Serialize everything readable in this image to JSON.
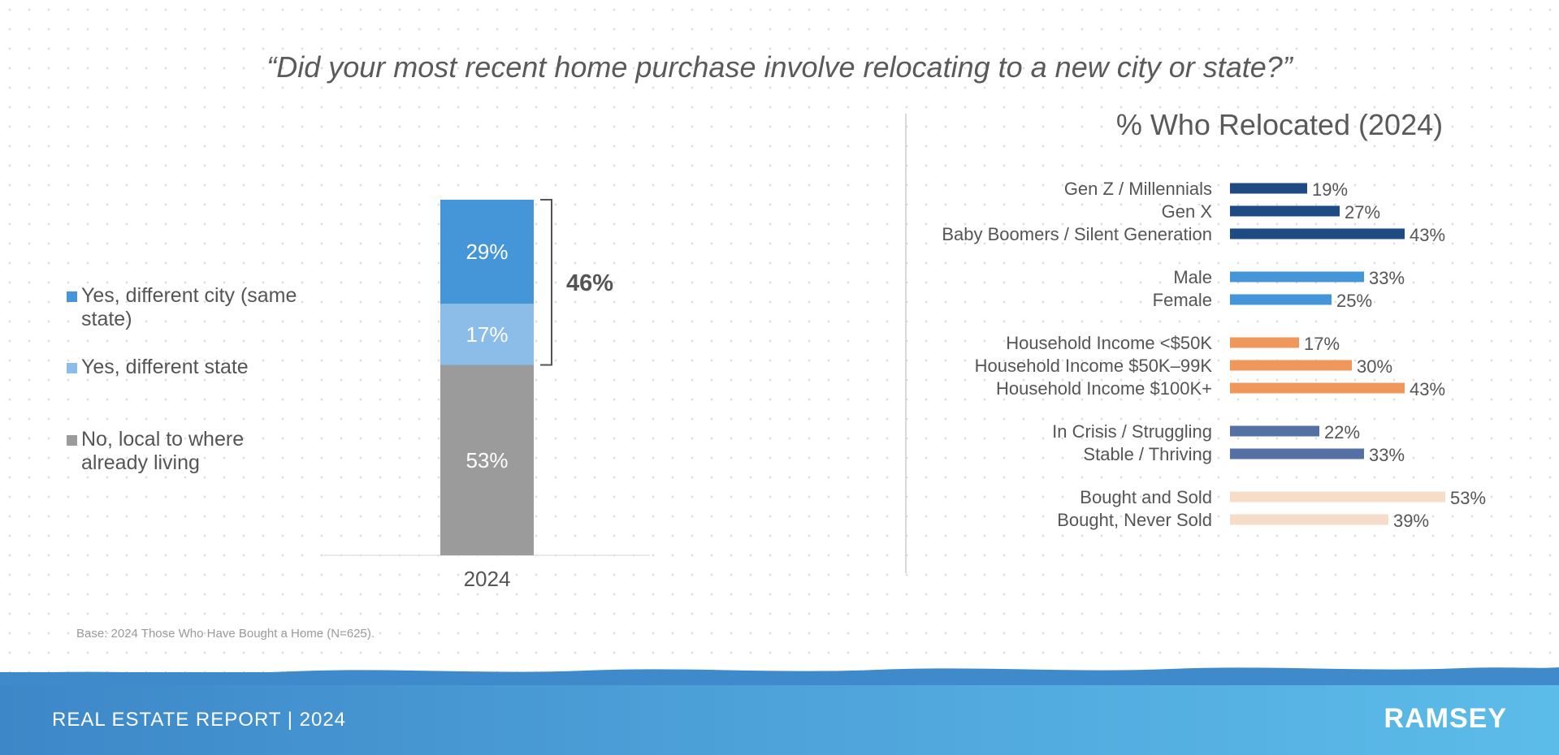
{
  "question": "“Did your most recent home purchase involve relocating to a new city or state?”",
  "base_note": "Base: 2024 Those Who Have Bought a Home (N=625).",
  "footer": {
    "report": "REAL ESTATE REPORT | 2024",
    "brand": "RAMSEY"
  },
  "colors": {
    "same_state": "#4596d8",
    "diff_state": "#8bbde8",
    "local": "#9b9b9b",
    "generation": "#1e4b84",
    "gender": "#4596d8",
    "income": "#f0985c",
    "financial": "#5470a4",
    "selling": "#f7dcc8",
    "footer_start": "#3d87c8",
    "footer_end": "#5cbce9"
  },
  "chart_data": [
    {
      "type": "bar",
      "stacked": true,
      "categories": [
        "2024"
      ],
      "series": [
        {
          "name": "No, local to where already living",
          "values": [
            53
          ],
          "color": "#9b9b9b"
        },
        {
          "name": "Yes, different state",
          "values": [
            17
          ],
          "color": "#8bbde8"
        },
        {
          "name": "Yes, different city (same state)",
          "values": [
            29
          ],
          "color": "#4596d8"
        }
      ],
      "data_labels": [
        "53%",
        "17%",
        "29%"
      ],
      "bracket_label": "46%",
      "legend": [
        {
          "label": "Yes, different city (same state)",
          "color": "#4596d8"
        },
        {
          "label": "Yes, different state",
          "color": "#8bbde8"
        },
        {
          "label": "No, local to where already living",
          "color": "#9b9b9b"
        }
      ],
      "legend_position": "left",
      "ylim": [
        0,
        100
      ],
      "grid": false
    },
    {
      "type": "bar",
      "orientation": "horizontal",
      "title": "% Who Relocated (2024)",
      "xlim": [
        0,
        60
      ],
      "grid": false,
      "groups": [
        {
          "color": "#1e4b84",
          "items": [
            {
              "label": "Gen Z / Millennials",
              "value": 19
            },
            {
              "label": "Gen X",
              "value": 27
            },
            {
              "label": "Baby Boomers / Silent Generation",
              "value": 43
            }
          ]
        },
        {
          "color": "#4596d8",
          "items": [
            {
              "label": "Male",
              "value": 33
            },
            {
              "label": "Female",
              "value": 25
            }
          ]
        },
        {
          "color": "#f0985c",
          "items": [
            {
              "label": "Household Income <$50K",
              "value": 17
            },
            {
              "label": "Household Income $50K–99K",
              "value": 30
            },
            {
              "label": "Household Income $100K+",
              "value": 43
            }
          ]
        },
        {
          "color": "#5470a4",
          "items": [
            {
              "label": "In Crisis / Struggling",
              "value": 22
            },
            {
              "label": "Stable / Thriving",
              "value": 33
            }
          ]
        },
        {
          "color": "#f7dcc8",
          "items": [
            {
              "label": "Bought and Sold",
              "value": 53
            },
            {
              "label": "Bought, Never Sold",
              "value": 39
            }
          ]
        }
      ]
    }
  ]
}
